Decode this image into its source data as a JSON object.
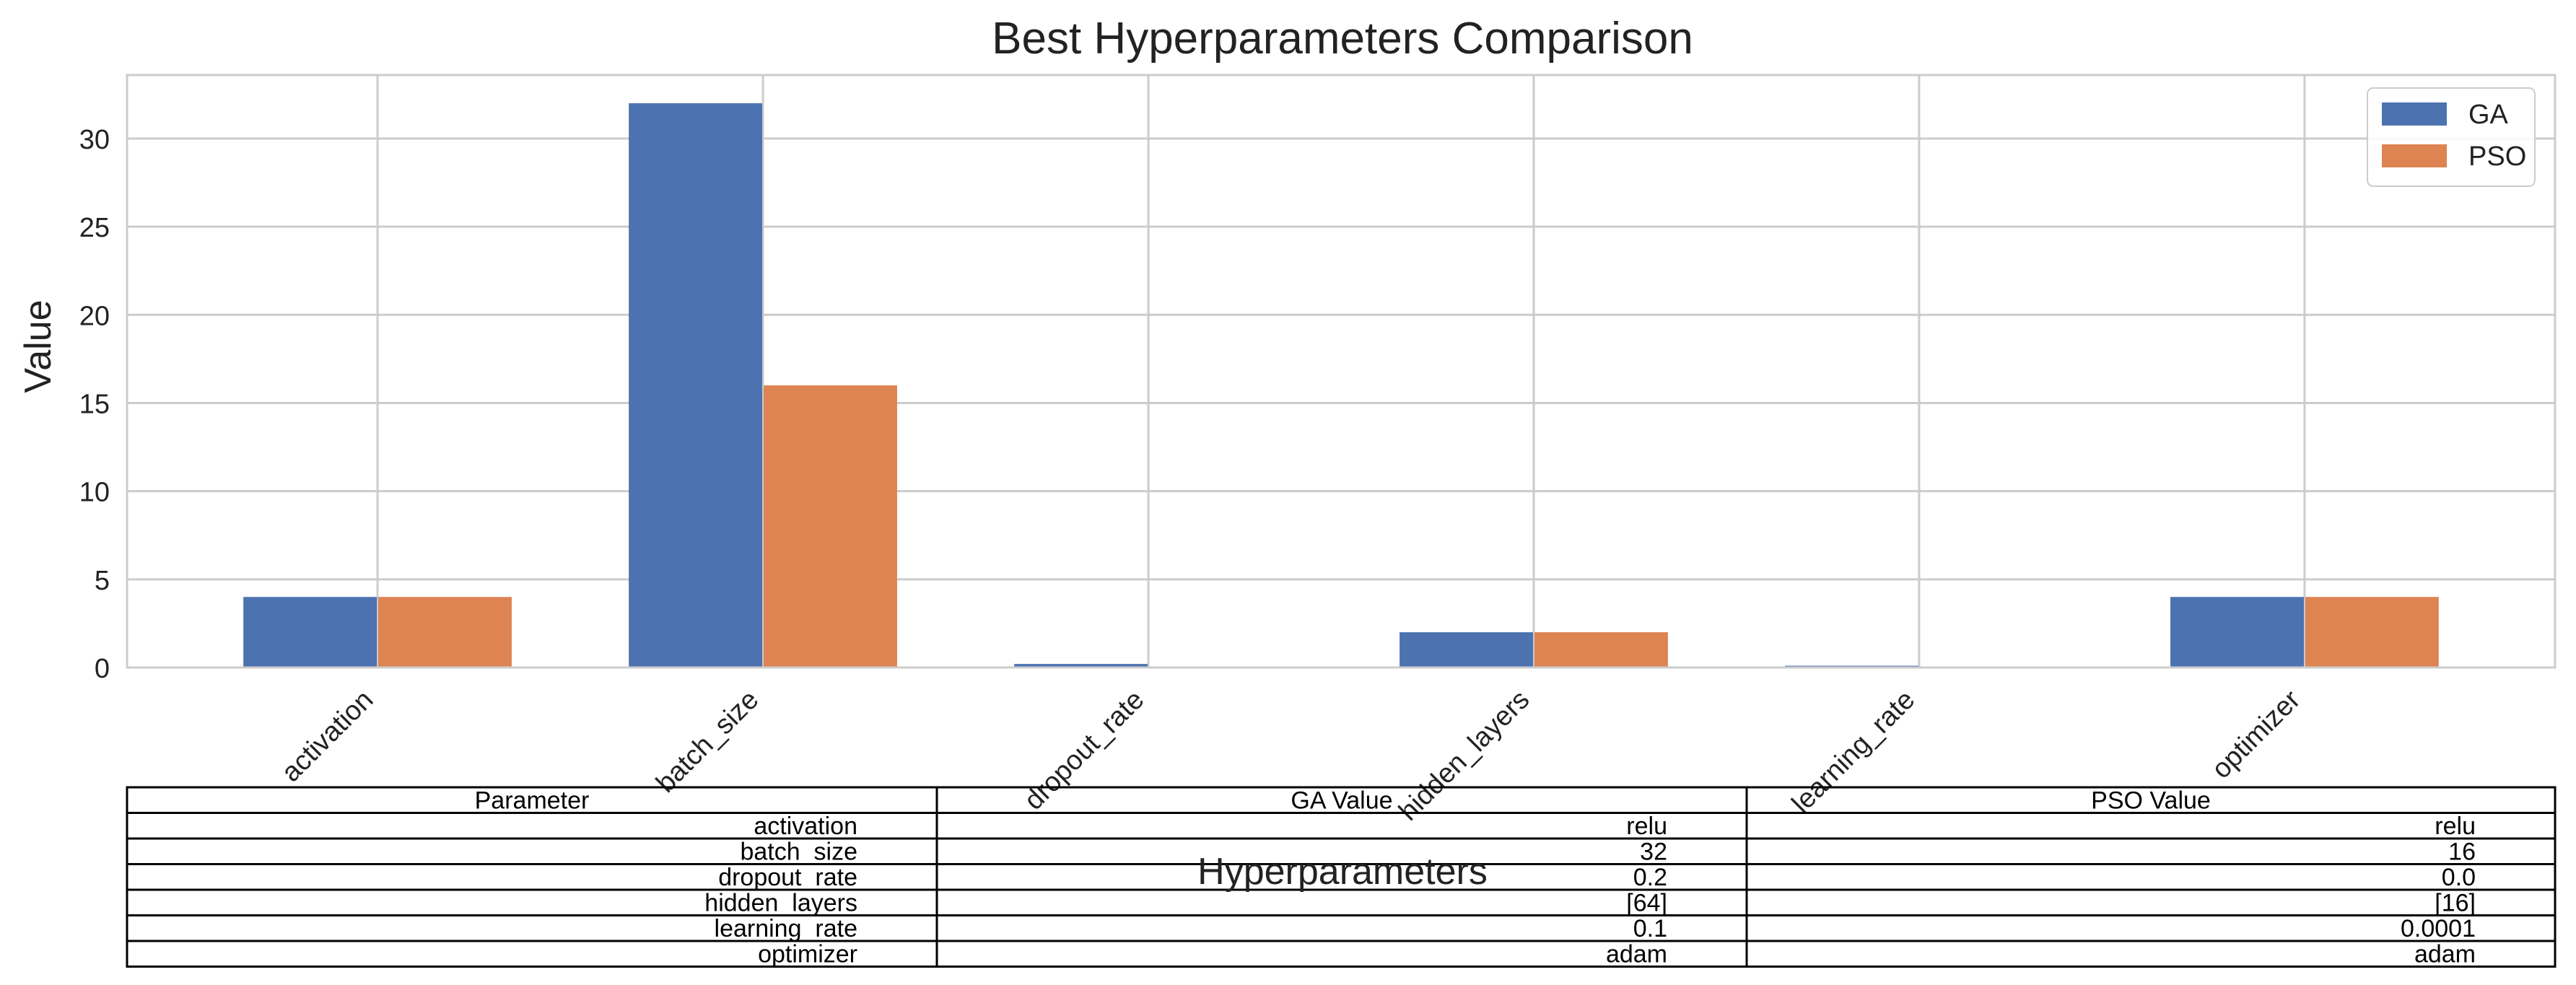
{
  "chart_data": {
    "type": "bar",
    "title": "Best Hyperparameters Comparison",
    "xlabel": "Hyperparameters",
    "ylabel": "Value",
    "categories": [
      "activation",
      "batch_size",
      "dropout_rate",
      "hidden_layers",
      "learning_rate",
      "optimizer"
    ],
    "series": [
      {
        "name": "GA",
        "color": "#4c72b0",
        "values": [
          4,
          32,
          0.2,
          2,
          0.1,
          4
        ]
      },
      {
        "name": "PSO",
        "color": "#dd8452",
        "values": [
          4,
          16,
          0.0,
          2,
          0.0001,
          4
        ]
      }
    ],
    "ylim": [
      0,
      33.6
    ],
    "yticks": [
      0,
      5,
      10,
      15,
      20,
      25,
      30
    ],
    "grid": true,
    "legend_position": "top-right"
  },
  "table": {
    "headers": [
      "Parameter",
      "GA Value",
      "PSO Value"
    ],
    "rows": [
      [
        "activation",
        "relu",
        "relu"
      ],
      [
        "batch_size",
        "32",
        "16"
      ],
      [
        "dropout_rate",
        "0.2",
        "0.0"
      ],
      [
        "hidden_layers",
        "[64]",
        "[16]"
      ],
      [
        "learning_rate",
        "0.1",
        "0.0001"
      ],
      [
        "optimizer",
        "adam",
        "adam"
      ]
    ]
  }
}
